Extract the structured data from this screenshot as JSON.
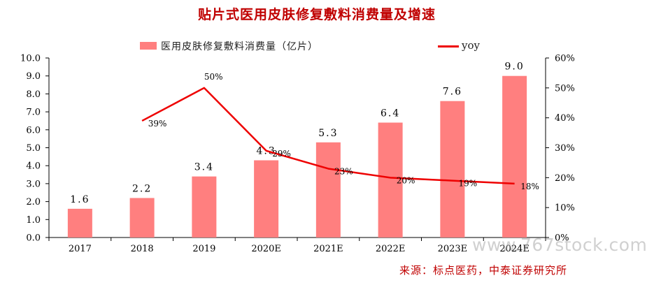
{
  "chart_data": {
    "type": "bar+line",
    "title": "贴片式医用皮肤修复敷料消费量及增速",
    "categories": [
      "2017",
      "2018",
      "2019",
      "2020E",
      "2021E",
      "2022E",
      "2023E",
      "2024E"
    ],
    "bar_series": {
      "name": "医用皮肤修复敷料消费量（亿片）",
      "values": [
        1.6,
        2.2,
        3.4,
        4.3,
        5.3,
        6.4,
        7.6,
        9.0
      ],
      "value_labels": [
        "1.6",
        "2.2",
        "3.4",
        "4.3",
        "5.3",
        "6.4",
        "7.6",
        "9.0"
      ],
      "color": "#ff7f7f"
    },
    "line_series": {
      "name": "yoy",
      "values": [
        null,
        39,
        50,
        29,
        23,
        20,
        19,
        18
      ],
      "value_labels": [
        "",
        "39%",
        "50%",
        "29%",
        "23%",
        "20%",
        "19%",
        "18%"
      ],
      "color": "#ee0000"
    },
    "y_left": {
      "range": [
        0,
        10
      ],
      "ticks": [
        "0.0",
        "1.0",
        "2.0",
        "3.0",
        "4.0",
        "5.0",
        "6.0",
        "7.0",
        "8.0",
        "9.0",
        "10.0"
      ]
    },
    "y_right": {
      "range": [
        0,
        60
      ],
      "ticks": [
        "0%",
        "10%",
        "20%",
        "30%",
        "40%",
        "50%",
        "60%"
      ]
    },
    "grid": false,
    "legend_position": "top"
  },
  "legend": {
    "bar_label": "医用皮肤修复敷料消费量（亿片）",
    "line_label": "yoy"
  },
  "source": "来源：标点医药，中泰证券研究所",
  "watermark": "www.767stock.com"
}
